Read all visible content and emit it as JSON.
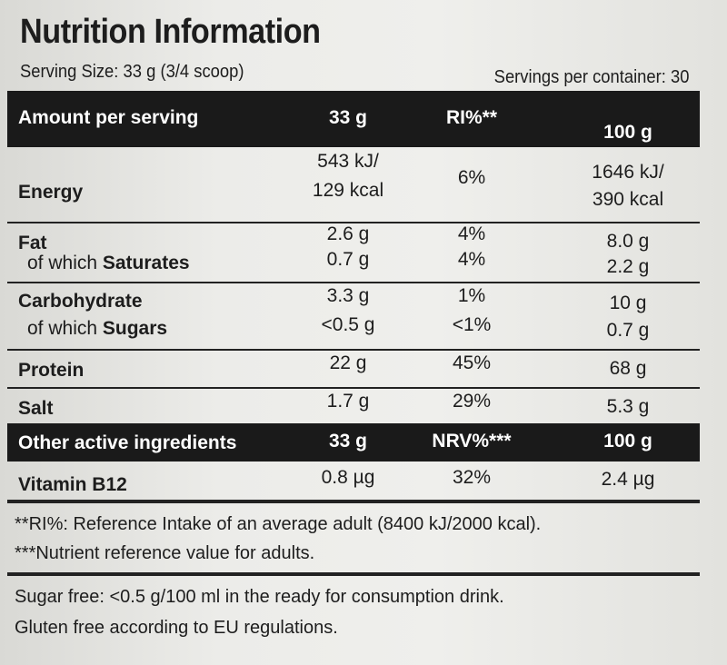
{
  "title": "Nutrition Information",
  "serving_size": "Serving Size: 33 g (3/4 scoop)",
  "servings_per_container": "Servings per container: 30",
  "header1": {
    "c0": "Amount per serving",
    "c1": "33 g",
    "c2": "RI%**",
    "c3": "100 g"
  },
  "energy": {
    "label": "Energy",
    "v1a": "543 kJ/",
    "v1b": "129 kcal",
    "ri": "6%",
    "v3a": "1646 kJ/",
    "v3b": "390 kcal"
  },
  "fat": {
    "label": "Fat",
    "v1": "2.6 g",
    "ri": "4%",
    "v3": "8.0 g"
  },
  "saturates": {
    "prefix": "of which ",
    "label": "Saturates",
    "v1": "0.7 g",
    "ri": "4%",
    "v3": "2.2 g"
  },
  "carbohydrate": {
    "label": "Carbohydrate",
    "v1": "3.3 g",
    "ri": "1%",
    "v3": "10 g"
  },
  "sugars": {
    "prefix": "of which ",
    "label": "Sugars",
    "v1": "<0.5 g",
    "ri": "<1%",
    "v3": "0.7 g"
  },
  "protein": {
    "label": "Protein",
    "v1": "22 g",
    "ri": "45%",
    "v3": "68 g"
  },
  "salt": {
    "label": "Salt",
    "v1": "1.7 g",
    "ri": "29%",
    "v3": "5.3 g"
  },
  "header2": {
    "c0": "Other active ingredients",
    "c1": "33 g",
    "c2": "NRV%***",
    "c3": "100 g"
  },
  "vitamin_b12": {
    "label": "Vitamin B12",
    "v1": "0.8 µg",
    "nrv": "32%",
    "v3": "2.4 µg"
  },
  "footnote_ri": "**RI%: Reference Intake of an average adult (8400 kJ/2000 kcal).",
  "footnote_nrv": "***Nutrient reference value for adults.",
  "sugar_free": "Sugar free: <0.5 g/100 ml in the ready for consumption drink.",
  "gluten_free": "Gluten free according to EU regulations."
}
